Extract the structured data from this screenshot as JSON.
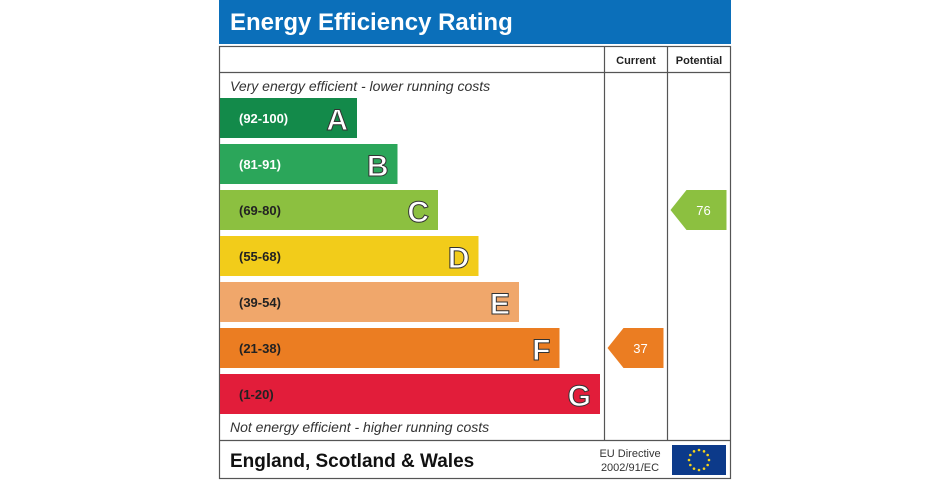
{
  "chart_data": {
    "type": "bar",
    "title": "Energy Efficiency Rating",
    "top_note": "Very energy efficient - lower running costs",
    "bottom_note": "Not energy efficient - higher running costs",
    "columns": {
      "current": "Current",
      "potential": "Potential"
    },
    "bands": [
      {
        "letter": "A",
        "range": "(92-100)",
        "min": 92,
        "max": 100,
        "color": "#138a4a"
      },
      {
        "letter": "B",
        "range": "(81-91)",
        "min": 81,
        "max": 91,
        "color": "#2ba65a"
      },
      {
        "letter": "C",
        "range": "(69-80)",
        "min": 69,
        "max": 80,
        "color": "#8cc040"
      },
      {
        "letter": "D",
        "range": "(55-68)",
        "min": 55,
        "max": 68,
        "color": "#f2cc1a"
      },
      {
        "letter": "E",
        "range": "(39-54)",
        "min": 39,
        "max": 54,
        "color": "#f0a76b"
      },
      {
        "letter": "F",
        "range": "(21-38)",
        "min": 21,
        "max": 38,
        "color": "#eb7d22"
      },
      {
        "letter": "G",
        "range": "(1-20)",
        "min": 1,
        "max": 20,
        "color": "#e21d3a"
      }
    ],
    "current": {
      "value": 37,
      "label": "37"
    },
    "potential": {
      "value": 76,
      "label": "76"
    }
  },
  "footer": {
    "region": "England, Scotland & Wales",
    "directive_line1": "EU Directive",
    "directive_line2": "2002/91/EC"
  },
  "colors": {
    "header_bg": "#0b6fba",
    "eu_flag_bg": "#0c3a8a",
    "eu_star": "#f7d417",
    "border": "#555555"
  }
}
